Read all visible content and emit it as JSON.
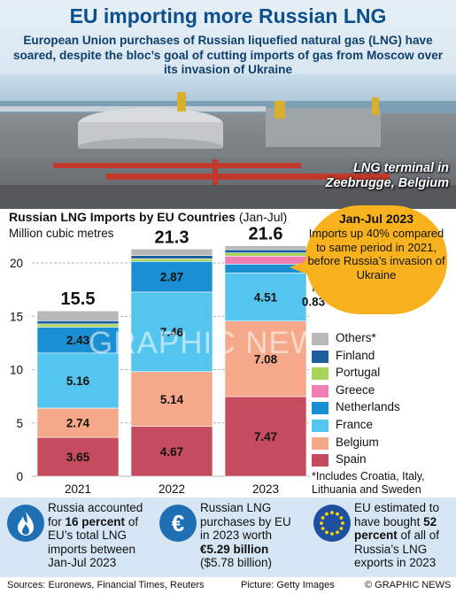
{
  "header": {
    "title": "EU importing more Russian LNG",
    "subtitle": "European Union purchases of Russian liquefied natural gas (LNG) have soared, despite the bloc’s goal of cutting imports of gas from Moscow over its invasion of Ukraine"
  },
  "photo": {
    "caption_line1": "LNG terminal in",
    "caption_line2": "Zeebrugge, Belgium"
  },
  "chart_heading": {
    "main": "Russian LNG Imports by EU Countries",
    "period": "(Jan-Jul)",
    "unit": "Million cubic metres"
  },
  "chart_data": {
    "type": "bar",
    "stacked": true,
    "categories": [
      "2021",
      "2022",
      "2023"
    ],
    "totals": [
      "15.5",
      "21.3",
      "21.6"
    ],
    "ylabel": "Million cubic metres",
    "ylim": [
      0,
      22
    ],
    "yticks": [
      "0",
      "5",
      "10",
      "15",
      "20"
    ],
    "grid": true,
    "series": [
      {
        "name": "Spain",
        "color": "#c44c5e",
        "values": [
          3.65,
          4.67,
          7.47
        ],
        "labels": [
          "3.65",
          "4.67",
          "7.47"
        ]
      },
      {
        "name": "Belgium",
        "color": "#f6a98a",
        "values": [
          2.74,
          5.14,
          7.08
        ],
        "labels": [
          "2.74",
          "5.14",
          "7.08"
        ]
      },
      {
        "name": "France",
        "color": "#54c5ef",
        "values": [
          5.16,
          7.46,
          4.51
        ],
        "labels": [
          "5.16",
          "7.46",
          "4.51"
        ]
      },
      {
        "name": "Netherlands",
        "color": "#1a8fd3",
        "values": [
          2.43,
          2.87,
          0.83
        ],
        "labels": [
          "2.43",
          "2.87",
          "0.83"
        ]
      },
      {
        "name": "Greece",
        "color": "#ef7fb3",
        "values": [
          0,
          0,
          0.75
        ],
        "labels": [
          "",
          "",
          ""
        ]
      },
      {
        "name": "Portugal",
        "color": "#a9d45a",
        "values": [
          0.3,
          0.25,
          0.3
        ],
        "labels": [
          "",
          "",
          ""
        ]
      },
      {
        "name": "Finland",
        "color": "#1d5f9c",
        "values": [
          0.3,
          0.3,
          0.3
        ],
        "labels": [
          "",
          "",
          ""
        ]
      },
      {
        "name": "Others*",
        "color": "#b8b8b8",
        "values": [
          0.92,
          0.61,
          0.36
        ],
        "labels": [
          "",
          "",
          ""
        ]
      }
    ],
    "legend_position": "right",
    "legend_note": "*Includes Croatia, Italy, Lithuania and Sweden"
  },
  "callout": {
    "heading": "Jan-Jul 2023",
    "body": "Imports up 40% compared to same period in 2021, before Russia’s invasion of Ukraine"
  },
  "watermark": "GRAPHIC NEWS",
  "facts": [
    {
      "icon": "gas-flame-icon",
      "pre": "Russia accounted for ",
      "bold": "16 percent",
      "post": " of EU’s total LNG imports between Jan-Jul 2023"
    },
    {
      "icon": "euro-icon",
      "pre": "Russian LNG purchases by EU in 2023 worth ",
      "bold": "€5.29 billion",
      "post": " ($5.78 billion)"
    },
    {
      "icon": "eu-flag-icon",
      "pre": "EU estimated to have bought ",
      "bold": "52 percent",
      "post": " of all of Russia’s LNG exports in 2023"
    }
  ],
  "footer": {
    "sources": "Sources: Euronews, Financial Times, Reuters",
    "picture": "Picture: Getty Images",
    "credit": "© GRAPHIC NEWS"
  },
  "colors": {
    "title": "#0d4f8b",
    "callout": "#f7b21e",
    "facts_band": "#d6e6f4",
    "icon_blue": "#1f6fb5"
  }
}
